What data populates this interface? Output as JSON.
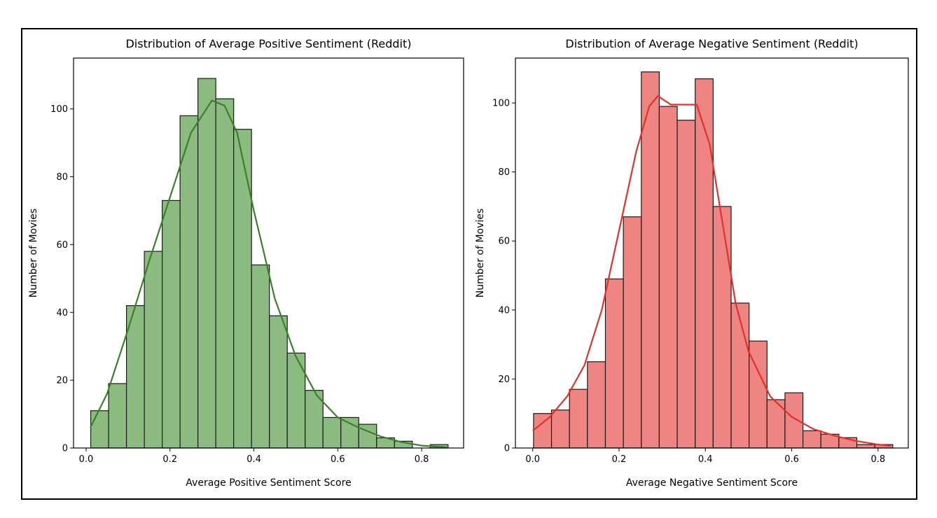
{
  "chart_data": [
    {
      "type": "bar",
      "title": "Distribution of Average Positive Sentiment (Reddit)",
      "xlabel": "Average Positive Sentiment Score",
      "ylabel": "Number of Movies",
      "xlim": [
        -0.03,
        0.9
      ],
      "ylim": [
        0,
        115
      ],
      "xticks": [
        0.0,
        0.2,
        0.4,
        0.6,
        0.8
      ],
      "xtick_labels": [
        "0.0",
        "0.2",
        "0.4",
        "0.6",
        "0.8"
      ],
      "yticks": [
        0,
        20,
        40,
        60,
        80,
        100
      ],
      "ytick_labels": [
        "0",
        "20",
        "40",
        "60",
        "80",
        "100"
      ],
      "bin_start": 0.011,
      "bin_width": 0.0426,
      "values": [
        11,
        19,
        42,
        58,
        73,
        98,
        109,
        103,
        94,
        54,
        39,
        28,
        17,
        9,
        9,
        7,
        3,
        2,
        0,
        1
      ],
      "kde": [
        [
          0.01,
          6
        ],
        [
          0.05,
          16
        ],
        [
          0.1,
          35
        ],
        [
          0.15,
          55
        ],
        [
          0.2,
          74
        ],
        [
          0.25,
          93
        ],
        [
          0.3,
          102.5
        ],
        [
          0.33,
          101
        ],
        [
          0.36,
          93
        ],
        [
          0.4,
          70
        ],
        [
          0.45,
          44
        ],
        [
          0.5,
          27
        ],
        [
          0.55,
          15.5
        ],
        [
          0.6,
          9
        ],
        [
          0.65,
          6
        ],
        [
          0.7,
          3.5
        ],
        [
          0.75,
          1.8
        ],
        [
          0.8,
          0.7
        ],
        [
          0.86,
          0.2
        ]
      ],
      "bar_color": "#8cbb82",
      "edge_color": "#1a1a1a",
      "line_color": "#3a8028",
      "grid": false
    },
    {
      "type": "bar",
      "title": "Distribution of Average Negative Sentiment (Reddit)",
      "xlabel": "Average Negative Sentiment Score",
      "ylabel": "Number of Movies",
      "xlim": [
        -0.04,
        0.87
      ],
      "ylim": [
        0,
        113
      ],
      "xticks": [
        0.0,
        0.2,
        0.4,
        0.6,
        0.8
      ],
      "xtick_labels": [
        "0.0",
        "0.2",
        "0.4",
        "0.6",
        "0.8"
      ],
      "yticks": [
        0,
        20,
        40,
        60,
        80,
        100
      ],
      "ytick_labels": [
        "0",
        "20",
        "40",
        "60",
        "80",
        "100"
      ],
      "bin_start": 0.002,
      "bin_width": 0.0416,
      "values": [
        10,
        11,
        17,
        25,
        49,
        67,
        109,
        99,
        95,
        107,
        70,
        42,
        31,
        14,
        16,
        5,
        4,
        3,
        1,
        1
      ],
      "kde": [
        [
          0.0,
          5
        ],
        [
          0.04,
          9
        ],
        [
          0.08,
          15
        ],
        [
          0.12,
          24
        ],
        [
          0.16,
          40
        ],
        [
          0.2,
          63
        ],
        [
          0.24,
          86
        ],
        [
          0.27,
          99
        ],
        [
          0.29,
          102
        ],
        [
          0.32,
          99.5
        ],
        [
          0.35,
          99.5
        ],
        [
          0.38,
          99.5
        ],
        [
          0.41,
          88
        ],
        [
          0.44,
          65
        ],
        [
          0.47,
          42
        ],
        [
          0.5,
          28
        ],
        [
          0.55,
          15
        ],
        [
          0.6,
          9
        ],
        [
          0.65,
          5.5
        ],
        [
          0.7,
          3.5
        ],
        [
          0.75,
          2
        ],
        [
          0.8,
          1
        ],
        [
          0.83,
          0.6
        ]
      ],
      "bar_color": "#ef8582",
      "edge_color": "#1a1a1a",
      "line_color": "#e0312b",
      "grid": false
    }
  ]
}
